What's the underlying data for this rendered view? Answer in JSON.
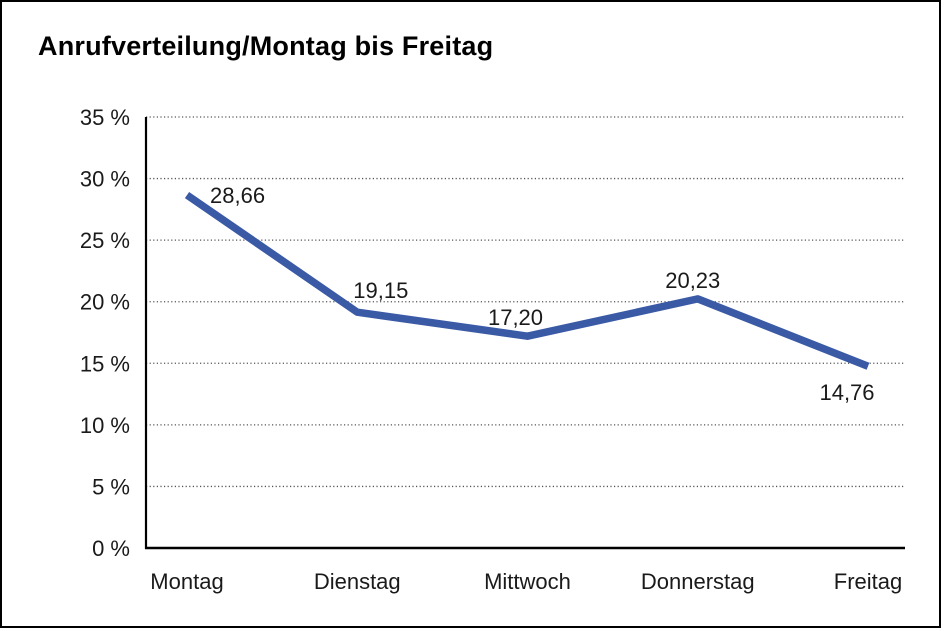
{
  "header": {
    "title": "Anrufverteilung/Montag bis Freitag"
  },
  "chart_data": {
    "type": "line",
    "title": "Anrufverteilung/Montag bis Freitag",
    "categories": [
      "Montag",
      "Dienstag",
      "Mittwoch",
      "Donnerstag",
      "Freitag"
    ],
    "values": [
      28.66,
      19.15,
      17.2,
      20.23,
      14.76
    ],
    "point_labels": [
      "28,66",
      "19,15",
      "17,20",
      "20,23",
      "14,76"
    ],
    "yticks": [
      0,
      5,
      10,
      15,
      20,
      25,
      30,
      35
    ],
    "ytick_labels": [
      "0 %",
      "5 %",
      "10 %",
      "15 %",
      "20 %",
      "25 %",
      "30 %",
      "35 %"
    ],
    "ylim": [
      0,
      35
    ],
    "xlabel": "",
    "ylabel": "",
    "grid": "horizontal-dotted",
    "legend": "none",
    "colors": {
      "line": "#3A5AA5",
      "axis": "#000000",
      "gridline": "#555555",
      "text": "#1a1a1a",
      "background": "#ffffff"
    }
  }
}
